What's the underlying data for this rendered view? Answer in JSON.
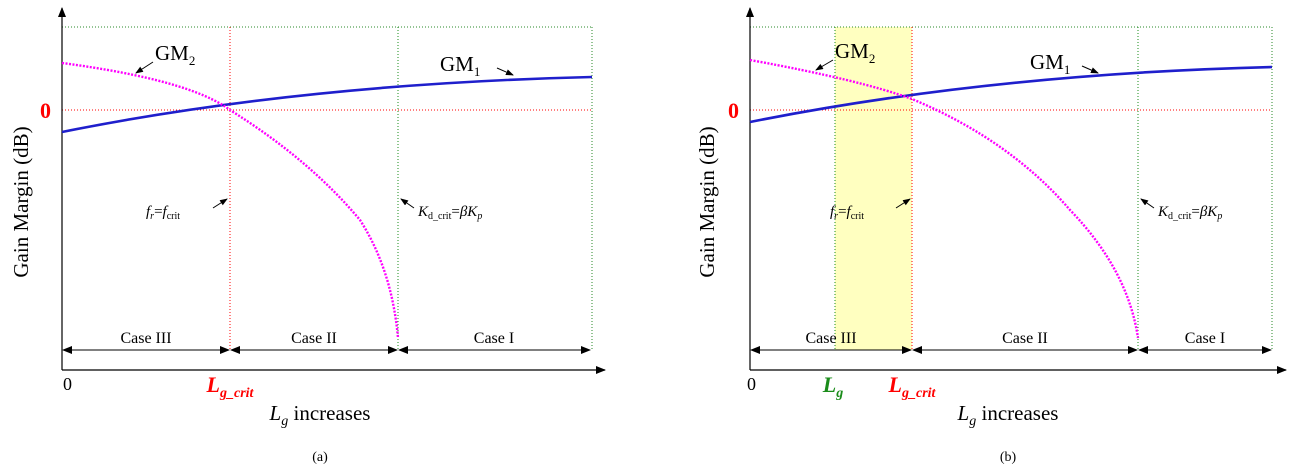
{
  "panels": [
    {
      "id": "a",
      "caption": "(a)",
      "ylabel": "Gain Margin (dB)",
      "zero_label": "0",
      "origin_label": "0",
      "xlabel_sym": "L",
      "xlabel_sub": "g",
      "xlabel_text": " increases",
      "crit_sym": "L",
      "crit_sub": "g_crit",
      "lg_sym": "",
      "lg_sub": "",
      "gm1_main": "GM",
      "gm1_sub": "1",
      "gm2_main": "GM",
      "gm2_sub": "2",
      "fr_f1": "f",
      "fr_s1": "r",
      "fr_eq": "=",
      "fr_f2": "f",
      "fr_s2": "crit",
      "kd_K1": "K",
      "kd_s1": "d_crit",
      "kd_eq": "=",
      "kd_beta": "β",
      "kd_K2": "K",
      "kd_s2": "p",
      "cases": [
        "Case III",
        "Case II",
        "Case I"
      ]
    },
    {
      "id": "b",
      "caption": "(b)",
      "ylabel": "Gain Margin (dB)",
      "zero_label": "0",
      "origin_label": "0",
      "xlabel_sym": "L",
      "xlabel_sub": "g",
      "xlabel_text": " increases",
      "crit_sym": "L",
      "crit_sub": "g_crit",
      "lg_sym": "L",
      "lg_sub": "g",
      "gm1_main": "GM",
      "gm1_sub": "1",
      "gm2_main": "GM",
      "gm2_sub": "2",
      "fr_f1": "f",
      "fr_s1": "r",
      "fr_eq": "=",
      "fr_f2": "f",
      "fr_s2": "crit",
      "kd_K1": "K",
      "kd_s1": "d_crit",
      "kd_eq": "=",
      "kd_beta": "β",
      "kd_K2": "K",
      "kd_s2": "p",
      "cases": [
        "Case III",
        "Case II",
        "Case I"
      ]
    }
  ],
  "colors": {
    "gm1": "#1f1fcc",
    "gm2": "#ff00ff",
    "crit_line": "#ff0000",
    "case1_line": "#1a8c1a",
    "highlight": "#ffffc0",
    "zero_label": "#ff0000",
    "lg_label": "#1a8c1a"
  }
}
